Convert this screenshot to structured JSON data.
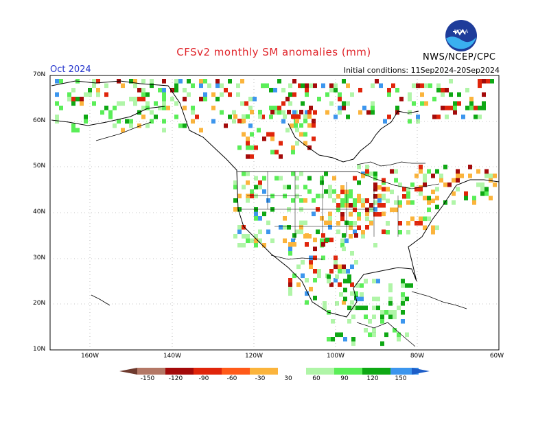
{
  "header": {
    "title": "CFSv2 monthly SM anomalies (mm)",
    "month": "Oct 2024",
    "initial_conditions": "Initial conditions: 11Sep2024-20Sep2024",
    "agency": "NWS/NCEP/CPC",
    "logo_icon": "noaa-logo-icon"
  },
  "axes": {
    "lat_labels": [
      "70N",
      "60N",
      "50N",
      "40N",
      "30N",
      "20N",
      "10N"
    ],
    "lon_labels": [
      "160W",
      "140W",
      "120W",
      "100W",
      "80W",
      "60W"
    ]
  },
  "legend": {
    "labels": [
      "-150",
      "-120",
      "-90",
      "-60",
      "-30",
      "30",
      "60",
      "90",
      "120",
      "150"
    ],
    "colors": [
      "#6e3a2e",
      "#b47866",
      "#a40a0a",
      "#e0250b",
      "#ff5a19",
      "#fbb43c",
      "#ffffff",
      "#b0f5a8",
      "#5aee58",
      "#0ea814",
      "#3c96ee",
      "#1e5ec8"
    ]
  },
  "colors": {
    "dry_strong": "#a40a0a",
    "dry": "#e0250b",
    "dry_mild": "#fbb43c",
    "wet_mild": "#b0f5a8",
    "wet": "#5aee58",
    "wet_strong": "#0ea814",
    "very_wet": "#3c96ee"
  }
}
